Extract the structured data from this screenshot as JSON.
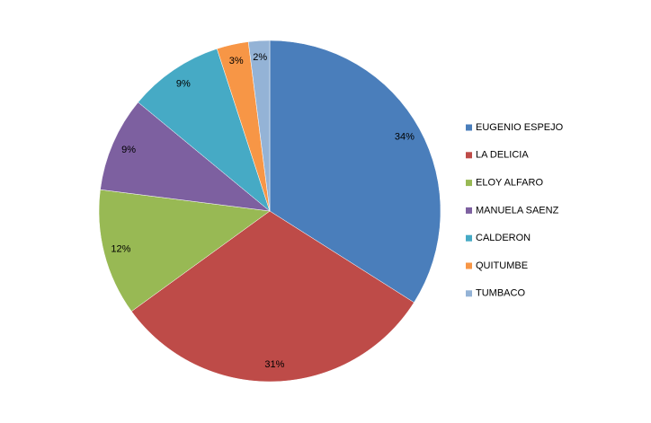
{
  "chart_data": {
    "type": "pie",
    "categories": [
      "EUGENIO ESPEJO",
      "LA DELICIA",
      "ELOY ALFARO",
      "MANUELA SAENZ",
      "CALDERON",
      "QUITUMBE",
      "TUMBACO"
    ],
    "values": [
      34,
      31,
      12,
      9,
      9,
      3,
      2
    ],
    "value_labels": [
      "34%",
      "31%",
      "12%",
      "9%",
      "9%",
      "3%",
      "2%"
    ],
    "colors": [
      "#4a7ebb",
      "#be4b48",
      "#98b954",
      "#7d60a0",
      "#46aac5",
      "#f79646",
      "#94b3d6"
    ],
    "legend": "right"
  }
}
